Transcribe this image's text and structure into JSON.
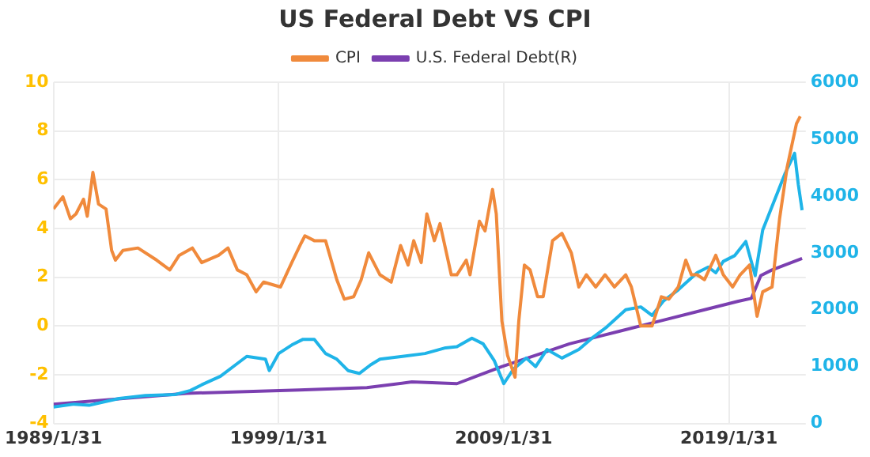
{
  "chart_data": {
    "type": "line",
    "title": "US Federal Debt VS CPI",
    "xlim": [
      "1989-01-31",
      "2022-06-30"
    ],
    "xticks": [
      {
        "value": "1989-01-31",
        "label": "1989/1/31"
      },
      {
        "value": "1999-01-31",
        "label": "1999/1/31"
      },
      {
        "value": "2009-01-31",
        "label": "2009/1/31"
      },
      {
        "value": "2019-01-31",
        "label": "2019/1/31"
      }
    ],
    "ylim": [
      -4,
      10
    ],
    "yticks": [
      -4,
      -2,
      0,
      2,
      4,
      6,
      8,
      10
    ],
    "y2lim": [
      0,
      6000
    ],
    "y2ticks": [
      0,
      1000,
      2000,
      3000,
      4000,
      5000,
      6000
    ],
    "grid": true,
    "legend": "top",
    "marker": "none",
    "line_style": "solid",
    "series": [
      {
        "name": "CPI",
        "color": "#f08a3c",
        "x": [
          "1989-01-31",
          "1989-07",
          "1989-11",
          "1990-02",
          "1990-06",
          "1990-08",
          "1990-11",
          "1991-02",
          "1991-06",
          "1991-09",
          "1991-11",
          "1992-03",
          "1992-11",
          "1993-09",
          "1994-04",
          "1994-09",
          "1995-04",
          "1995-09",
          "1996-06",
          "1996-11",
          "1997-04",
          "1997-09",
          "1998-02",
          "1998-06",
          "1999-03",
          "1999-09",
          "2000-02",
          "2000-04",
          "2000-09",
          "2001-03",
          "2001-09",
          "2002-01",
          "2002-06",
          "2002-10",
          "2003-02",
          "2003-08",
          "2004-02",
          "2004-07",
          "2004-11",
          "2005-02",
          "2005-06",
          "2005-09",
          "2006-01",
          "2006-04",
          "2006-10",
          "2007-01",
          "2007-06",
          "2007-08",
          "2008-01",
          "2008-04",
          "2008-08",
          "2008-10",
          "2009-01",
          "2009-04",
          "2009-08",
          "2009-10",
          "2010-01",
          "2010-04",
          "2010-08",
          "2010-11",
          "2011-04",
          "2011-09",
          "2012-02",
          "2012-06",
          "2012-10",
          "2013-03",
          "2013-08",
          "2014-01",
          "2014-07",
          "2014-10",
          "2015-03",
          "2015-09",
          "2016-02",
          "2016-06",
          "2016-11",
          "2017-03",
          "2017-06",
          "2017-09",
          "2018-01",
          "2018-07",
          "2018-11",
          "2019-04",
          "2019-08",
          "2020-01",
          "2020-05",
          "2020-08",
          "2021-01",
          "2021-05",
          "2021-09",
          "2022-02",
          "2022-04"
        ],
        "values": [
          4.8,
          5.3,
          4.4,
          4.6,
          5.2,
          4.5,
          6.3,
          5.0,
          4.8,
          3.1,
          2.7,
          3.1,
          3.2,
          2.7,
          2.3,
          2.9,
          3.2,
          2.6,
          2.9,
          3.2,
          2.3,
          2.1,
          1.4,
          1.8,
          1.6,
          2.6,
          3.4,
          3.7,
          3.5,
          3.5,
          1.9,
          1.1,
          1.2,
          1.9,
          3.0,
          2.1,
          1.8,
          3.3,
          2.5,
          3.5,
          2.6,
          4.6,
          3.5,
          4.2,
          2.1,
          2.1,
          2.7,
          2.1,
          4.3,
          3.9,
          5.6,
          4.6,
          0.2,
          -1.2,
          -2.1,
          0.2,
          2.5,
          2.3,
          1.2,
          1.2,
          3.5,
          3.8,
          3.0,
          1.6,
          2.1,
          1.6,
          2.1,
          1.6,
          2.1,
          1.6,
          0.0,
          0.0,
          1.2,
          1.1,
          1.6,
          2.7,
          2.1,
          2.1,
          1.9,
          2.9,
          2.1,
          1.6,
          2.1,
          2.5,
          0.4,
          1.4,
          1.6,
          4.4,
          6.5,
          8.3,
          8.6
        ]
      },
      {
        "color": "#1fb4e8",
        "axis": "y2",
        "x": [
          "1989-02",
          "1990-01",
          "1990-09",
          "1992-01",
          "1993-03",
          "1994-07",
          "1995-03",
          "1995-09",
          "1996-07",
          "1997-03",
          "1997-09",
          "1998-07",
          "1998-09",
          "1999-02",
          "1999-09",
          "2000-03",
          "2000-09",
          "2001-03",
          "2001-09",
          "2002-03",
          "2002-09",
          "2003-03",
          "2003-08",
          "2004-08",
          "2005-08",
          "2006-07",
          "2007-01",
          "2007-09",
          "2008-03",
          "2008-09",
          "2009-02",
          "2009-07",
          "2010-02",
          "2010-07",
          "2011-01",
          "2011-09",
          "2012-06",
          "2013-01",
          "2013-09",
          "2014-07",
          "2015-03",
          "2015-09",
          "2016-03",
          "2016-11",
          "2017-09",
          "2018-03",
          "2018-07",
          "2018-11",
          "2019-05",
          "2019-11",
          "2020-04",
          "2020-08",
          "2021-02",
          "2021-08",
          "2022-01",
          "2022-03",
          "2022-05"
        ],
        "values": [
          290,
          340,
          320,
          440,
          490,
          510,
          580,
          680,
          830,
          1030,
          1180,
          1130,
          930,
          1230,
          1380,
          1480,
          1480,
          1230,
          1130,
          930,
          880,
          1030,
          1130,
          1180,
          1230,
          1330,
          1350,
          1500,
          1400,
          1100,
          700,
          950,
          1150,
          1000,
          1300,
          1150,
          1300,
          1500,
          1700,
          2000,
          2050,
          1900,
          2150,
          2350,
          2650,
          2750,
          2650,
          2850,
          2950,
          3200,
          2600,
          3400,
          3900,
          4400,
          4750,
          4200,
          3750
        ]
      },
      {
        "name": "U.S. Federal Debt(R)",
        "color": "#7b3fb0",
        "axis": "y2",
        "x": [
          "1989-01-31",
          "1995-01",
          "2000-01",
          "2003-01",
          "2005-01",
          "2007-01",
          "2008-01",
          "2009-01",
          "2010-07",
          "2012-01",
          "2014-01",
          "2016-01",
          "2018-01",
          "2019-07",
          "2020-02",
          "2020-07",
          "2021-01",
          "2022-05"
        ],
        "values": [
          340,
          530,
          590,
          630,
          730,
          700,
          850,
          1000,
          1200,
          1400,
          1600,
          1800,
          2000,
          2150,
          2200,
          2600,
          2700,
          2900
        ]
      }
    ]
  }
}
